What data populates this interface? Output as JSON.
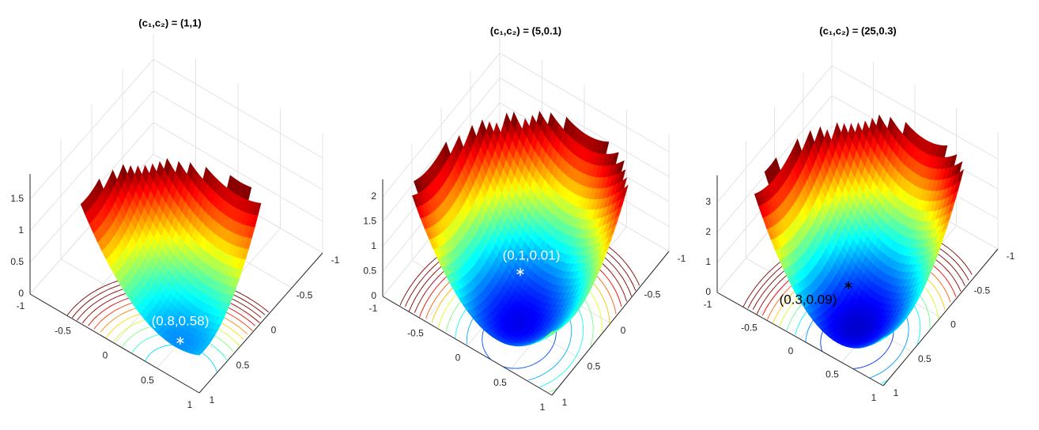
{
  "chart_data": [
    {
      "type": "surface",
      "title": "(c₁,c₂) = (1,1)",
      "colormap": "jet",
      "grid": true,
      "xlim": [
        -1,
        1
      ],
      "ylim": [
        -1,
        1
      ],
      "zlim": [
        0,
        1.9
      ],
      "xticks": [
        -1,
        -0.5,
        0,
        0.5,
        1
      ],
      "yticks": [
        -1,
        -0.5,
        0,
        0.5,
        1
      ],
      "zticks": [
        0,
        0.5,
        1,
        1.5
      ],
      "marker": {
        "label": "(0.8,0.58)"
      }
    },
    {
      "type": "surface",
      "title": "(c₁,c₂) = (5,0.1)",
      "colormap": "jet",
      "grid": true,
      "xlim": [
        -1,
        1
      ],
      "ylim": [
        -1,
        1
      ],
      "zlim": [
        0,
        2.35
      ],
      "xticks": [
        -1,
        -0.5,
        0,
        0.5,
        1
      ],
      "yticks": [
        -1,
        -0.5,
        0,
        0.5,
        1
      ],
      "zticks": [
        0,
        0.5,
        1,
        1.5,
        2
      ],
      "marker": {
        "label": "(0.1,0.01)"
      }
    },
    {
      "type": "surface",
      "title": "(c₁,c₂) = (25,0.3)",
      "colormap": "jet",
      "grid": true,
      "xlim": [
        -1,
        1
      ],
      "ylim": [
        -1,
        1
      ],
      "zlim": [
        0,
        3.9
      ],
      "xticks": [
        -1,
        -0.5,
        0,
        0.5,
        1
      ],
      "yticks": [
        -1,
        -0.5,
        0,
        0.5,
        1
      ],
      "zticks": [
        0,
        1,
        2,
        3
      ],
      "marker": {
        "label": "(0.3,0.09)"
      }
    }
  ]
}
